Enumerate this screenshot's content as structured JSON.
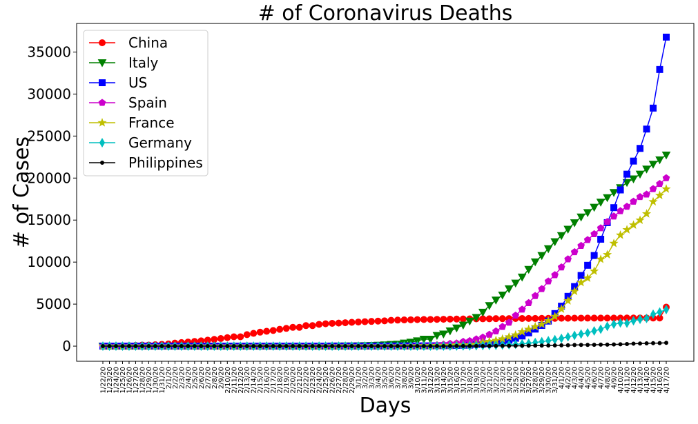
{
  "chart_data": {
    "type": "line",
    "title": "# of Coronavirus Deaths",
    "xlabel": "Days",
    "ylabel": "# of Cases",
    "ylim": [
      -1800,
      38400
    ],
    "yticks": [
      0,
      5000,
      10000,
      15000,
      20000,
      25000,
      30000,
      35000
    ],
    "grid": false,
    "legend_position": "top-left",
    "x": [
      "1/22/20",
      "1/23/20",
      "1/24/20",
      "1/25/20",
      "1/26/20",
      "1/27/20",
      "1/28/20",
      "1/29/20",
      "1/30/20",
      "1/31/20",
      "2/1/20",
      "2/2/20",
      "2/3/20",
      "2/4/20",
      "2/5/20",
      "2/6/20",
      "2/7/20",
      "2/8/20",
      "2/9/20",
      "2/10/20",
      "2/11/20",
      "2/12/20",
      "2/13/20",
      "2/14/20",
      "2/15/20",
      "2/16/20",
      "2/17/20",
      "2/18/20",
      "2/19/20",
      "2/20/20",
      "2/21/20",
      "2/22/20",
      "2/23/20",
      "2/24/20",
      "2/25/20",
      "2/26/20",
      "2/27/20",
      "2/28/20",
      "2/29/20",
      "3/1/20",
      "3/2/20",
      "3/3/20",
      "3/4/20",
      "3/5/20",
      "3/6/20",
      "3/7/20",
      "3/8/20",
      "3/9/20",
      "3/10/20",
      "3/11/20",
      "3/12/20",
      "3/13/20",
      "3/14/20",
      "3/15/20",
      "3/16/20",
      "3/17/20",
      "3/18/20",
      "3/19/20",
      "3/20/20",
      "3/21/20",
      "3/22/20",
      "3/23/20",
      "3/24/20",
      "3/25/20",
      "3/26/20",
      "3/27/20",
      "3/28/20",
      "3/29/20",
      "3/30/20",
      "3/31/20",
      "4/1/20",
      "4/2/20",
      "4/3/20",
      "4/4/20",
      "4/5/20",
      "4/6/20",
      "4/7/20",
      "4/8/20",
      "4/9/20",
      "4/10/20",
      "4/11/20",
      "4/12/20",
      "4/13/20",
      "4/14/20",
      "4/15/20",
      "4/16/20",
      "4/17/20"
    ],
    "series": [
      {
        "name": "China",
        "color": "#ff0000",
        "marker": "circle",
        "values": [
          17,
          18,
          26,
          42,
          56,
          82,
          131,
          133,
          171,
          213,
          259,
          361,
          425,
          490,
          562,
          632,
          717,
          804,
          904,
          1011,
          1111,
          1116,
          1368,
          1520,
          1662,
          1765,
          1863,
          2002,
          2114,
          2236,
          2236,
          2441,
          2443,
          2593,
          2663,
          2715,
          2744,
          2788,
          2835,
          2870,
          2912,
          2943,
          2981,
          3013,
          3070,
          3097,
          3119,
          3136,
          3158,
          3169,
          3176,
          3189,
          3199,
          3213,
          3226,
          3237,
          3245,
          3249,
          3253,
          3259,
          3274,
          3274,
          3281,
          3285,
          3291,
          3296,
          3299,
          3304,
          3308,
          3309,
          3316,
          3322,
          3326,
          3330,
          3333,
          3335,
          3335,
          3337,
          3339,
          3340,
          3343,
          3343,
          3345,
          3345,
          3345,
          3346,
          4636
        ]
      },
      {
        "name": "Italy",
        "color": "#008000",
        "marker": "triangle-down",
        "values": [
          0,
          0,
          0,
          0,
          0,
          0,
          0,
          0,
          0,
          0,
          0,
          0,
          0,
          0,
          0,
          0,
          0,
          0,
          0,
          0,
          0,
          0,
          0,
          0,
          0,
          0,
          0,
          0,
          0,
          0,
          1,
          2,
          3,
          7,
          10,
          12,
          17,
          21,
          29,
          34,
          52,
          79,
          107,
          148,
          197,
          233,
          366,
          463,
          631,
          827,
          827,
          1266,
          1441,
          1809,
          2158,
          2503,
          2978,
          3405,
          4032,
          4825,
          5476,
          6077,
          6820,
          7503,
          8215,
          9134,
          10023,
          10779,
          11591,
          12428,
          13155,
          13915,
          14681,
          15362,
          15887,
          16523,
          17127,
          17669,
          18279,
          18849,
          19468,
          19899,
          20465,
          21067,
          21645,
          22170,
          22745
        ]
      },
      {
        "name": "US",
        "color": "#0000ff",
        "marker": "square",
        "values": [
          0,
          0,
          0,
          0,
          0,
          0,
          0,
          0,
          0,
          0,
          0,
          0,
          0,
          0,
          0,
          0,
          0,
          0,
          0,
          0,
          0,
          0,
          0,
          0,
          0,
          0,
          0,
          0,
          0,
          0,
          0,
          0,
          0,
          0,
          0,
          0,
          0,
          0,
          1,
          1,
          6,
          7,
          11,
          12,
          14,
          17,
          21,
          22,
          28,
          36,
          40,
          47,
          54,
          63,
          85,
          108,
          118,
          200,
          244,
          307,
          427,
          552,
          706,
          942,
          1209,
          1581,
          2026,
          2467,
          2978,
          3873,
          4757,
          5926,
          7087,
          8407,
          9619,
          10783,
          12722,
          14695,
          16478,
          18586,
          20463,
          22020,
          23529,
          25831,
          28325,
          32916,
          36773
        ]
      },
      {
        "name": "Spain",
        "color": "#cc00cc",
        "marker": "pentagon",
        "values": [
          0,
          0,
          0,
          0,
          0,
          0,
          0,
          0,
          0,
          0,
          0,
          0,
          0,
          0,
          0,
          0,
          0,
          0,
          0,
          0,
          0,
          0,
          0,
          0,
          0,
          0,
          0,
          0,
          0,
          0,
          0,
          0,
          0,
          0,
          0,
          0,
          0,
          0,
          0,
          0,
          0,
          1,
          2,
          3,
          5,
          10,
          17,
          28,
          35,
          54,
          55,
          133,
          195,
          289,
          342,
          533,
          623,
          830,
          1043,
          1375,
          1772,
          2311,
          2808,
          3647,
          4365,
          5138,
          5982,
          6803,
          7716,
          8464,
          9387,
          10348,
          11198,
          11947,
          12641,
          13341,
          14045,
          14792,
          15447,
          16081,
          16606,
          17209,
          17756,
          18056,
          18708,
          19315,
          20002
        ]
      },
      {
        "name": "France",
        "color": "#bfbf00",
        "marker": "star",
        "values": [
          0,
          0,
          0,
          0,
          0,
          0,
          0,
          0,
          0,
          0,
          0,
          0,
          0,
          0,
          0,
          0,
          0,
          0,
          0,
          0,
          0,
          0,
          0,
          0,
          1,
          1,
          1,
          1,
          1,
          1,
          1,
          1,
          1,
          1,
          1,
          2,
          2,
          2,
          2,
          2,
          3,
          4,
          4,
          6,
          9,
          11,
          19,
          19,
          33,
          48,
          48,
          79,
          91,
          91,
          149,
          149,
          149,
          244,
          451,
          563,
          676,
          862,
          1102,
          1333,
          1698,
          1997,
          2317,
          2611,
          3030,
          3532,
          4414,
          5398,
          6520,
          7574,
          8093,
          8926,
          10343,
          10887,
          12228,
          13215,
          13851,
          14412,
          14986,
          15748,
          17188,
          17941,
          18703
        ]
      },
      {
        "name": "Germany",
        "color": "#00bfbf",
        "marker": "thin-diamond",
        "values": [
          0,
          0,
          0,
          0,
          0,
          0,
          0,
          0,
          0,
          0,
          0,
          0,
          0,
          0,
          0,
          0,
          0,
          0,
          0,
          0,
          0,
          0,
          0,
          0,
          0,
          0,
          0,
          0,
          0,
          0,
          0,
          0,
          0,
          0,
          0,
          0,
          0,
          0,
          0,
          0,
          0,
          0,
          0,
          0,
          0,
          0,
          0,
          2,
          2,
          3,
          3,
          7,
          9,
          11,
          17,
          24,
          28,
          44,
          67,
          84,
          94,
          123,
          157,
          206,
          267,
          342,
          433,
          533,
          645,
          775,
          920,
          1107,
          1275,
          1444,
          1584,
          1810,
          2016,
          2349,
          2607,
          2767,
          2736,
          3022,
          3194,
          3294,
          3804,
          4052,
          4352
        ]
      },
      {
        "name": "Philippines",
        "color": "#000000",
        "marker": "point",
        "values": [
          0,
          0,
          0,
          0,
          0,
          0,
          0,
          0,
          0,
          0,
          0,
          1,
          1,
          1,
          1,
          1,
          1,
          1,
          1,
          1,
          1,
          1,
          1,
          1,
          1,
          1,
          1,
          1,
          1,
          1,
          1,
          1,
          1,
          1,
          1,
          1,
          1,
          1,
          1,
          1,
          1,
          1,
          1,
          1,
          1,
          1,
          1,
          1,
          1,
          1,
          2,
          5,
          8,
          12,
          12,
          14,
          17,
          17,
          19,
          19,
          25,
          33,
          35,
          38,
          45,
          54,
          68,
          71,
          78,
          88,
          96,
          107,
          136,
          144,
          152,
          163,
          177,
          182,
          203,
          221,
          247,
          297,
          315,
          335,
          349,
          362,
          397
        ]
      }
    ]
  }
}
